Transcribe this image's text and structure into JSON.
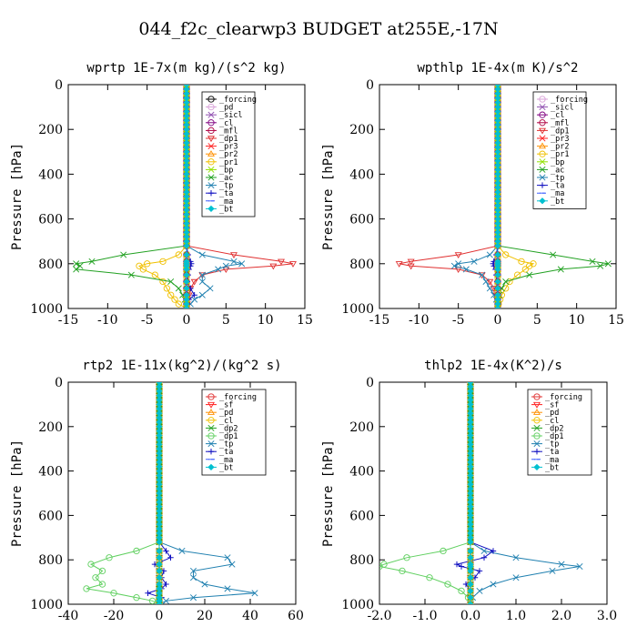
{
  "title": "044_f2c_clearwp3  BUDGET at255E,-17N",
  "chart_data": [
    {
      "type": "line",
      "title": "wprtp  1E-7x(m kg)/(s^2 kg)",
      "ylabel": "Pressure [hPa]",
      "xlim": [
        -15,
        15
      ],
      "ylim": [
        1000,
        0
      ],
      "xticks": [
        -15,
        -10,
        -5,
        0,
        5,
        10,
        15
      ],
      "xtick_labels": [
        "-15",
        "-10",
        "-5",
        "0",
        "5",
        "10",
        "15"
      ],
      "yticks": [
        0,
        200,
        400,
        600,
        800,
        1000
      ],
      "y": [
        720,
        760,
        790,
        800,
        810,
        825,
        850,
        880,
        910,
        940,
        960,
        980,
        1000
      ],
      "series": [
        {
          "name": "_forcing",
          "color": "#000000",
          "marker": "o",
          "values": [
            0,
            0,
            0,
            0,
            0,
            0,
            0,
            0,
            0,
            0,
            0,
            0,
            0
          ]
        },
        {
          "name": "_pd",
          "color": "#d8a0d8",
          "marker": "o",
          "values": [
            0,
            0,
            0,
            0,
            0,
            0,
            0,
            0,
            0,
            0,
            0,
            0,
            0
          ]
        },
        {
          "name": "_sicl",
          "color": "#9050b0",
          "marker": "x",
          "values": [
            0,
            0,
            0,
            0,
            0,
            0,
            0,
            0,
            0,
            0,
            0,
            0,
            0
          ]
        },
        {
          "name": "_cl",
          "color": "#800080",
          "marker": "o",
          "values": [
            0,
            0,
            0,
            0,
            0,
            0,
            0,
            0,
            0,
            0,
            0,
            0,
            0
          ]
        },
        {
          "name": "_mfl",
          "color": "#b00040",
          "marker": "o",
          "values": [
            0,
            0,
            0,
            0,
            0,
            0,
            0,
            0,
            0,
            0,
            0,
            0,
            0
          ]
        },
        {
          "name": "_dp1",
          "color": "#e03030",
          "marker": "v",
          "values": [
            0,
            6,
            12,
            13.5,
            11,
            5,
            2,
            1,
            0.5,
            0.3,
            0.2,
            0.1,
            0
          ]
        },
        {
          "name": "_pr3",
          "color": "#ff2020",
          "marker": "x",
          "values": [
            0,
            0,
            0,
            0,
            0,
            0,
            0,
            0,
            0,
            0,
            0,
            0,
            0
          ]
        },
        {
          "name": "_pr2",
          "color": "#ff9000",
          "marker": "^",
          "values": [
            0,
            0,
            0,
            0,
            0,
            0,
            0,
            0,
            0,
            0,
            0,
            0,
            0
          ]
        },
        {
          "name": "_pr1",
          "color": "#f0c000",
          "marker": "o",
          "values": [
            0,
            -1,
            -3,
            -5,
            -6,
            -5.5,
            -4,
            -3,
            -2.5,
            -2,
            -1.5,
            -1,
            0
          ]
        },
        {
          "name": "_bp",
          "color": "#90e000",
          "marker": "x",
          "values": [
            0,
            0,
            0,
            0,
            0,
            0,
            0,
            0,
            0,
            0,
            0,
            0,
            0
          ]
        },
        {
          "name": "_ac",
          "color": "#20a020",
          "marker": "x",
          "values": [
            0,
            -8,
            -12,
            -14,
            -13.5,
            -14,
            -7,
            -2,
            -1,
            -0.5,
            -0.2,
            0,
            0
          ]
        },
        {
          "name": "_tp",
          "color": "#2080b0",
          "marker": "x",
          "values": [
            0,
            2,
            6,
            7,
            5,
            4,
            2,
            2,
            3,
            2,
            1,
            0.5,
            0
          ]
        },
        {
          "name": "_ta",
          "color": "#1010c0",
          "marker": "+",
          "values": [
            0,
            0.2,
            0.5,
            0.6,
            0.5,
            0.3,
            0.2,
            0.1,
            0.5,
            1,
            0.3,
            0.1,
            0
          ]
        },
        {
          "name": "_ma",
          "color": "#4060ff",
          "marker": "-",
          "values": [
            0,
            0,
            0,
            0,
            0,
            0,
            0,
            0,
            0,
            0,
            0,
            0,
            0
          ]
        },
        {
          "name": "_bt",
          "color": "#00c0d0",
          "marker": "D",
          "values": [
            0,
            0,
            0,
            0,
            0,
            0,
            0,
            0,
            0,
            0,
            0,
            0,
            0
          ]
        }
      ]
    },
    {
      "type": "line",
      "title": "wpthlp  1E-4x(m K)/s^2",
      "ylabel": "Pressure [hPa]",
      "xlim": [
        -15,
        15
      ],
      "ylim": [
        1000,
        0
      ],
      "xticks": [
        -15,
        -10,
        -5,
        0,
        5,
        10,
        15
      ],
      "xtick_labels": [
        "-15",
        "-10",
        "-5",
        "0",
        "5",
        "10",
        "15"
      ],
      "yticks": [
        0,
        200,
        400,
        600,
        800,
        1000
      ],
      "y": [
        720,
        760,
        790,
        800,
        810,
        825,
        850,
        880,
        910,
        940,
        960,
        980,
        1000
      ],
      "series": [
        {
          "name": "_forcing",
          "color": "#d8a0d8",
          "marker": "o",
          "values": [
            0,
            0,
            0,
            0,
            0,
            0,
            0,
            0,
            0,
            0,
            0,
            0,
            0
          ]
        },
        {
          "name": "_sicl",
          "color": "#9050b0",
          "marker": "x",
          "values": [
            0,
            0,
            0,
            0,
            0,
            0,
            0,
            0,
            0,
            0,
            0,
            0,
            0
          ]
        },
        {
          "name": "_cl",
          "color": "#800080",
          "marker": "o",
          "values": [
            0,
            0,
            0,
            0,
            0,
            0,
            0,
            0,
            0,
            0,
            0,
            0,
            0
          ]
        },
        {
          "name": "_mfl",
          "color": "#b00040",
          "marker": "o",
          "values": [
            0,
            0,
            0,
            0,
            0,
            0,
            0,
            0,
            0,
            0,
            0,
            0,
            0
          ]
        },
        {
          "name": "_dp1",
          "color": "#e03030",
          "marker": "v",
          "values": [
            0,
            -5,
            -11,
            -12.5,
            -11,
            -5,
            -2,
            -1,
            -0.5,
            -0.2,
            -0.1,
            0,
            0
          ]
        },
        {
          "name": "_pr3",
          "color": "#ff2020",
          "marker": "x",
          "values": [
            0,
            0,
            0,
            0,
            0,
            0,
            0,
            0,
            0,
            0,
            0,
            0,
            0
          ]
        },
        {
          "name": "_pr2",
          "color": "#ff9000",
          "marker": "^",
          "values": [
            0,
            0,
            0,
            0,
            0,
            0,
            0,
            0,
            0,
            0,
            0,
            0,
            0
          ]
        },
        {
          "name": "_pr1",
          "color": "#f0c000",
          "marker": "o",
          "values": [
            0,
            1,
            3,
            4.5,
            4,
            3.5,
            2.5,
            1.5,
            1,
            0.5,
            0.3,
            0.1,
            0
          ]
        },
        {
          "name": "_bp",
          "color": "#90e000",
          "marker": "x",
          "values": [
            0,
            0,
            0,
            0,
            0,
            0,
            0,
            0,
            0,
            0,
            0,
            0,
            0
          ]
        },
        {
          "name": "_ac",
          "color": "#20a020",
          "marker": "x",
          "values": [
            0,
            7,
            12,
            14,
            13,
            8,
            4,
            1,
            0.5,
            0.2,
            0.1,
            0,
            0
          ]
        },
        {
          "name": "_tp",
          "color": "#2080b0",
          "marker": "x",
          "values": [
            0,
            -1,
            -3,
            -5,
            -5.5,
            -4,
            -2,
            -1.5,
            -1,
            -0.5,
            -0.2,
            0,
            0
          ]
        },
        {
          "name": "_ta",
          "color": "#1010c0",
          "marker": "+",
          "values": [
            0,
            -0.2,
            -0.5,
            -0.6,
            -0.5,
            -0.3,
            -0.2,
            -0.1,
            -0.1,
            0,
            0,
            0,
            0
          ]
        },
        {
          "name": "_ma",
          "color": "#4060ff",
          "marker": "-",
          "values": [
            0,
            0,
            0,
            0,
            0,
            0,
            0,
            0,
            0,
            0,
            0,
            0,
            0
          ]
        },
        {
          "name": "_bt",
          "color": "#00c0d0",
          "marker": "D",
          "values": [
            0,
            0,
            0,
            0,
            0,
            0,
            0,
            0,
            0,
            0,
            0,
            0,
            0
          ]
        }
      ]
    },
    {
      "type": "line",
      "title": "rtp2  1E-11x(kg^2)/(kg^2 s)",
      "ylabel": "Pressure [hPa]",
      "xlim": [
        -40,
        60
      ],
      "ylim": [
        1000,
        0
      ],
      "xticks": [
        -40,
        -20,
        0,
        20,
        40,
        60
      ],
      "xtick_labels": [
        "-40",
        "-20",
        "0",
        "20",
        "40",
        "60"
      ],
      "yticks": [
        0,
        200,
        400,
        600,
        800,
        1000
      ],
      "y": [
        720,
        760,
        790,
        820,
        850,
        880,
        910,
        930,
        950,
        970,
        985,
        1000
      ],
      "series": [
        {
          "name": "_forcing",
          "color": "#e03030",
          "marker": "o",
          "values": [
            0,
            0,
            0,
            0,
            0,
            0,
            0,
            0,
            0,
            0,
            0,
            0
          ]
        },
        {
          "name": "_sf",
          "color": "#ff2020",
          "marker": "v",
          "values": [
            0,
            0,
            0,
            0,
            0,
            0,
            0,
            0,
            0,
            0,
            0,
            0
          ]
        },
        {
          "name": "_pd",
          "color": "#ff9000",
          "marker": "^",
          "values": [
            0,
            0,
            0,
            0,
            0,
            0,
            0,
            0,
            0,
            0,
            0,
            0
          ]
        },
        {
          "name": "_cl",
          "color": "#f0c000",
          "marker": "o",
          "values": [
            0,
            0,
            0,
            0,
            0,
            0,
            0,
            0,
            0,
            0,
            0,
            0
          ]
        },
        {
          "name": "_dp2",
          "color": "#20a020",
          "marker": "x",
          "values": [
            0,
            0,
            0,
            0,
            0,
            0,
            0,
            0,
            0,
            0,
            0,
            0
          ]
        },
        {
          "name": "_dp1",
          "color": "#60d060",
          "marker": "o",
          "values": [
            0,
            -10,
            -22,
            -30,
            -25,
            -28,
            -25,
            -32,
            -20,
            -10,
            -3,
            0
          ]
        },
        {
          "name": "_tp",
          "color": "#2080b0",
          "marker": "x",
          "values": [
            0,
            10,
            30,
            32,
            15,
            15,
            20,
            30,
            42,
            15,
            3,
            0
          ]
        },
        {
          "name": "_ta",
          "color": "#1010c0",
          "marker": "+",
          "values": [
            0,
            3,
            5,
            -2,
            2,
            1,
            3,
            1,
            -5,
            1,
            0,
            0
          ]
        },
        {
          "name": "_ma",
          "color": "#4060ff",
          "marker": "-",
          "values": [
            0,
            0,
            0,
            0,
            0,
            0,
            0,
            0,
            0,
            0,
            0,
            0
          ]
        },
        {
          "name": "_bt",
          "color": "#00c0d0",
          "marker": "D",
          "values": [
            0,
            0,
            0,
            0,
            0,
            0,
            0,
            0,
            0,
            0,
            0,
            0
          ]
        }
      ]
    },
    {
      "type": "line",
      "title": "thlp2  1E-4x(K^2)/s",
      "ylabel": "Pressure [hPa]",
      "xlim": [
        -2,
        3
      ],
      "ylim": [
        1000,
        0
      ],
      "xticks": [
        -2,
        -1,
        0,
        1,
        2,
        3
      ],
      "xtick_labels": [
        "-2.0",
        "-1.0",
        "0.0",
        "1.0",
        "2.0",
        "3.0"
      ],
      "yticks": [
        0,
        200,
        400,
        600,
        800,
        1000
      ],
      "y": [
        720,
        760,
        790,
        820,
        830,
        850,
        880,
        910,
        940,
        970,
        1000
      ],
      "series": [
        {
          "name": "_forcing",
          "color": "#e03030",
          "marker": "o",
          "values": [
            0,
            0,
            0,
            0,
            0,
            0,
            0,
            0,
            0,
            0,
            0
          ]
        },
        {
          "name": "_sf",
          "color": "#ff2020",
          "marker": "v",
          "values": [
            0,
            0,
            0,
            0,
            0,
            0,
            0,
            0,
            0,
            0,
            0
          ]
        },
        {
          "name": "_pd",
          "color": "#ff9000",
          "marker": "^",
          "values": [
            0,
            0,
            0,
            0,
            0,
            0,
            0,
            0,
            0,
            0,
            0
          ]
        },
        {
          "name": "_cl",
          "color": "#f0c000",
          "marker": "o",
          "values": [
            0,
            0,
            0,
            0,
            0,
            0,
            0,
            0,
            0,
            0,
            0
          ]
        },
        {
          "name": "_dp2",
          "color": "#20a020",
          "marker": "x",
          "values": [
            0,
            0,
            0,
            0,
            0,
            0,
            0,
            0,
            0,
            0,
            0
          ]
        },
        {
          "name": "_dp1",
          "color": "#60d060",
          "marker": "o",
          "values": [
            0,
            -0.6,
            -1.4,
            -1.9,
            -2.0,
            -1.5,
            -0.9,
            -0.5,
            -0.2,
            -0.05,
            0
          ]
        },
        {
          "name": "_tp",
          "color": "#2080b0",
          "marker": "x",
          "values": [
            0,
            0.3,
            1.0,
            2.0,
            2.4,
            1.8,
            1.0,
            0.5,
            0.2,
            0.05,
            0
          ]
        },
        {
          "name": "_ta",
          "color": "#1010c0",
          "marker": "+",
          "values": [
            0,
            0.5,
            0.3,
            -0.3,
            -0.2,
            0.2,
            0.1,
            -0.1,
            0,
            0,
            0
          ]
        },
        {
          "name": "_ma",
          "color": "#4060ff",
          "marker": "-",
          "values": [
            0,
            0,
            0,
            0,
            0,
            0,
            0,
            0,
            0,
            0,
            0
          ]
        },
        {
          "name": "_bt",
          "color": "#00c0d0",
          "marker": "D",
          "values": [
            0,
            0,
            0,
            0,
            0,
            0,
            0,
            0,
            0,
            0,
            0
          ]
        }
      ]
    }
  ]
}
